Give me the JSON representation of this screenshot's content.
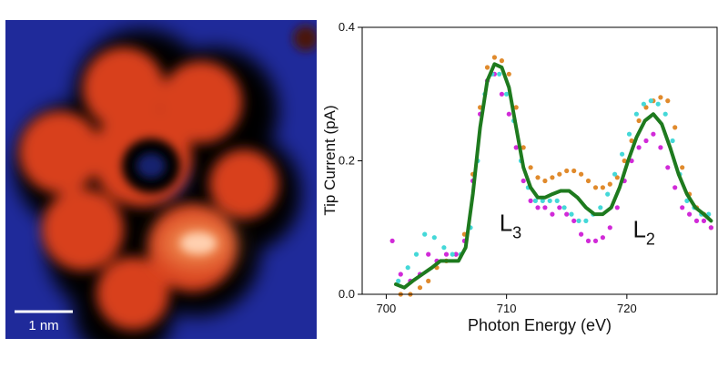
{
  "stm_image": {
    "scale_bar_label": "1 nm",
    "colors": {
      "background": "#1f2a9a",
      "halo": "#000000",
      "ring": "#e0441a",
      "hot": "#ffd0b0"
    }
  },
  "chart_data": {
    "type": "scatter",
    "title": "",
    "xlabel": "Photon Energy (eV)",
    "ylabel": "Tip Current (pA)",
    "xlim": [
      698,
      727.5
    ],
    "ylim": [
      0,
      0.4
    ],
    "x_ticks": [
      700,
      710,
      720
    ],
    "y_ticks": [
      0.0,
      0.2,
      0.4
    ],
    "x_tick_labels": [
      "700",
      "710",
      "720"
    ],
    "y_tick_labels": [
      "0.0",
      "0.2",
      "0.4"
    ],
    "grid": false,
    "annotations": [
      {
        "text": "L",
        "subscript": "3",
        "x": 709.4,
        "y": 0.095
      },
      {
        "text": "L",
        "subscript": "2",
        "x": 720.5,
        "y": 0.085
      }
    ],
    "series": [
      {
        "style": "points",
        "color": "#e08a2c",
        "x": [
          701.2,
          702.0,
          702.8,
          703.5,
          704.2,
          705.0,
          705.8,
          706.5,
          707.2,
          707.8,
          708.4,
          709.0,
          709.6,
          710.2,
          710.8,
          711.4,
          712.0,
          712.6,
          713.2,
          713.8,
          714.4,
          715.0,
          715.6,
          716.2,
          716.8,
          717.4,
          718.0,
          718.6,
          719.2,
          719.8,
          720.4,
          721.0,
          721.6,
          722.2,
          722.8,
          723.4,
          724.0,
          724.6,
          725.2,
          725.8,
          726.4,
          727.0
        ],
        "y": [
          0.0,
          0.0,
          0.01,
          0.02,
          0.04,
          0.05,
          0.06,
          0.09,
          0.18,
          0.28,
          0.34,
          0.355,
          0.35,
          0.33,
          0.28,
          0.22,
          0.19,
          0.175,
          0.17,
          0.175,
          0.18,
          0.185,
          0.185,
          0.18,
          0.17,
          0.16,
          0.16,
          0.165,
          0.175,
          0.2,
          0.23,
          0.26,
          0.28,
          0.29,
          0.295,
          0.29,
          0.25,
          0.19,
          0.15,
          0.13,
          0.12,
          0.1
        ]
      },
      {
        "style": "points",
        "color": "#d12ad8",
        "x": [
          700.5,
          701.2,
          702.0,
          702.8,
          703.5,
          704.2,
          705.0,
          705.8,
          706.5,
          707.2,
          707.8,
          708.4,
          709.0,
          709.6,
          710.2,
          710.8,
          711.4,
          712.0,
          712.6,
          713.2,
          713.8,
          714.4,
          715.0,
          715.6,
          716.2,
          716.8,
          717.4,
          718.0,
          718.6,
          719.2,
          719.8,
          720.4,
          721.0,
          721.6,
          722.2,
          722.8,
          723.4,
          724.0,
          724.6,
          725.2,
          725.8,
          726.4,
          727.0
        ],
        "y": [
          0.08,
          0.03,
          0.02,
          0.03,
          0.06,
          0.05,
          0.06,
          0.06,
          0.08,
          0.17,
          0.27,
          0.32,
          0.33,
          0.3,
          0.27,
          0.22,
          0.17,
          0.14,
          0.13,
          0.13,
          0.12,
          0.13,
          0.12,
          0.11,
          0.09,
          0.08,
          0.08,
          0.085,
          0.1,
          0.13,
          0.17,
          0.2,
          0.22,
          0.23,
          0.24,
          0.22,
          0.19,
          0.16,
          0.13,
          0.12,
          0.11,
          0.11,
          0.1
        ]
      },
      {
        "style": "points",
        "color": "#44d8d8",
        "x": [
          701.0,
          701.8,
          702.5,
          703.2,
          704.0,
          704.8,
          705.5,
          706.2,
          707.0,
          707.6,
          708.2,
          708.8,
          709.4,
          710.0,
          710.6,
          711.2,
          711.8,
          712.4,
          713.0,
          713.6,
          714.2,
          714.8,
          715.4,
          716.0,
          716.6,
          717.2,
          717.8,
          718.4,
          719.0,
          719.6,
          720.2,
          720.8,
          721.4,
          722.0,
          722.6,
          723.2,
          723.8,
          724.4,
          725.0,
          725.6,
          726.2,
          726.8
        ],
        "y": [
          0.02,
          0.04,
          0.06,
          0.09,
          0.085,
          0.07,
          0.06,
          0.06,
          0.1,
          0.2,
          0.3,
          0.33,
          0.33,
          0.3,
          0.26,
          0.2,
          0.16,
          0.14,
          0.14,
          0.14,
          0.14,
          0.13,
          0.12,
          0.11,
          0.11,
          0.12,
          0.13,
          0.15,
          0.18,
          0.21,
          0.24,
          0.27,
          0.285,
          0.29,
          0.285,
          0.27,
          0.23,
          0.18,
          0.14,
          0.13,
          0.12,
          0.12
        ]
      },
      {
        "style": "line",
        "color": "#1e7a1e",
        "x": [
          700.8,
          701.5,
          702.2,
          703.0,
          703.8,
          704.5,
          705.2,
          706.0,
          706.6,
          707.2,
          707.8,
          708.4,
          709.0,
          709.6,
          710.2,
          710.8,
          711.4,
          712.0,
          712.6,
          713.2,
          713.8,
          714.5,
          715.2,
          715.9,
          716.6,
          717.3,
          718.0,
          718.7,
          719.4,
          720.1,
          720.8,
          721.5,
          722.2,
          722.9,
          723.6,
          724.3,
          725.0,
          725.7,
          726.4,
          727.0
        ],
        "y": [
          0.015,
          0.01,
          0.02,
          0.03,
          0.04,
          0.05,
          0.05,
          0.05,
          0.07,
          0.15,
          0.25,
          0.32,
          0.345,
          0.34,
          0.31,
          0.25,
          0.19,
          0.16,
          0.145,
          0.145,
          0.15,
          0.155,
          0.155,
          0.145,
          0.13,
          0.12,
          0.12,
          0.13,
          0.16,
          0.2,
          0.235,
          0.26,
          0.27,
          0.255,
          0.22,
          0.18,
          0.15,
          0.13,
          0.12,
          0.11
        ]
      }
    ]
  }
}
